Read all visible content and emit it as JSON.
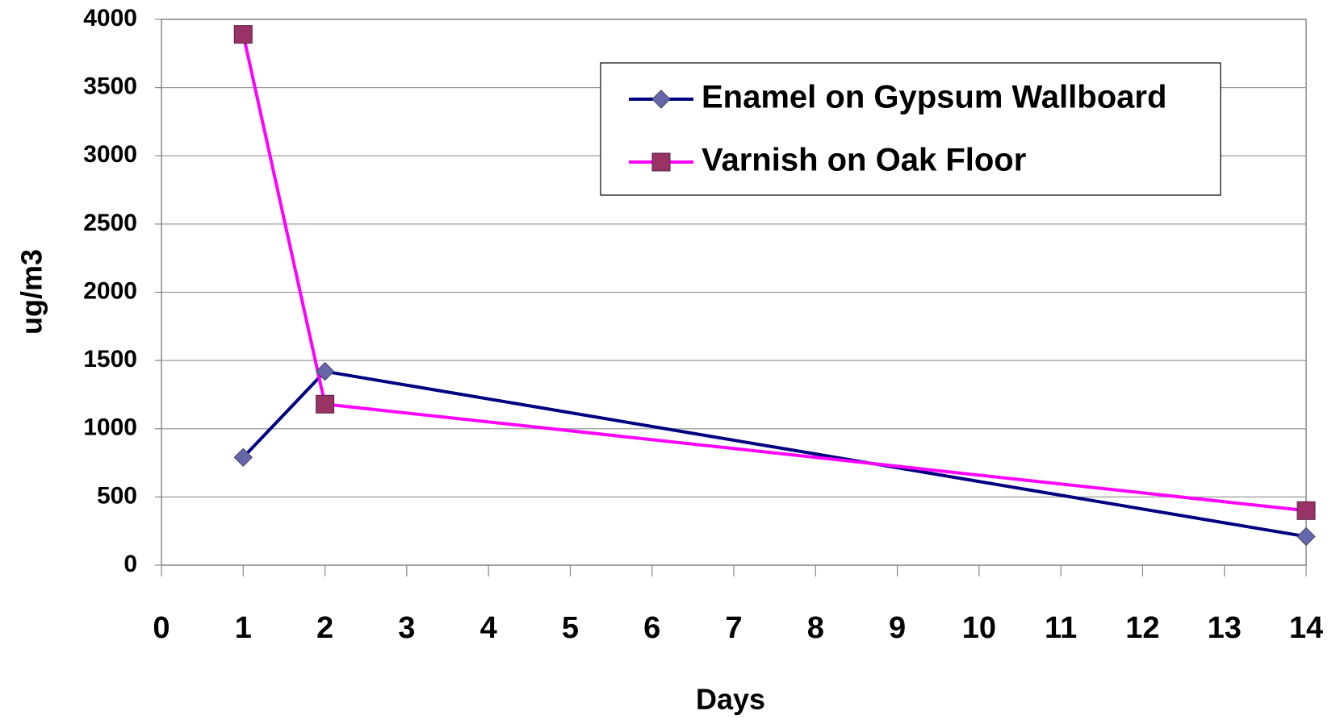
{
  "chart_data": {
    "type": "line",
    "x_label": "Days",
    "y_label": "ug/m3",
    "xlim": [
      0,
      14
    ],
    "xticks": [
      0,
      1,
      2,
      3,
      4,
      5,
      6,
      7,
      8,
      9,
      10,
      11,
      12,
      13,
      14
    ],
    "ylim": [
      0,
      4000
    ],
    "yticks": [
      0,
      500,
      1000,
      1500,
      2000,
      2500,
      3000,
      3500,
      4000
    ],
    "grid": true,
    "legend": "upper right",
    "series": [
      {
        "name": "Enamel on Gypsum Wallboard",
        "color": "#000080",
        "marker": "diamond",
        "marker_color": "#6666aa",
        "x": [
          1,
          2,
          14
        ],
        "values": [
          790,
          1420,
          210
        ]
      },
      {
        "name": "Varnish on Oak Floor",
        "color": "#ff00ff",
        "marker": "square",
        "marker_color": "#993366",
        "x": [
          1,
          2,
          14
        ],
        "values": [
          3890,
          1180,
          400
        ]
      }
    ]
  }
}
